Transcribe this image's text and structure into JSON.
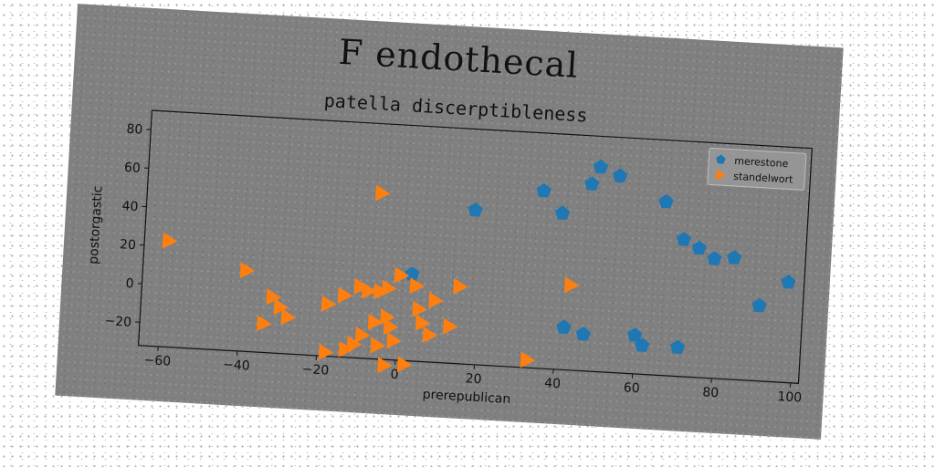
{
  "figure": {
    "suptitle": "F endothecal",
    "background": "#808080"
  },
  "chart_data": {
    "type": "scatter",
    "title": "patella discerptibleness",
    "xlabel": "prerepublican",
    "ylabel": "postorgastic",
    "xlim": [
      -65,
      102
    ],
    "ylim": [
      -32,
      90
    ],
    "xticks": [
      -60,
      -40,
      -20,
      0,
      20,
      40,
      60,
      80,
      100
    ],
    "yticks": [
      -20,
      0,
      20,
      40,
      60,
      80
    ],
    "grid": false,
    "legend_position": "upper right",
    "series": [
      {
        "name": "merestone",
        "marker": "pentagon",
        "color": "#1f77b4",
        "points": [
          [
            3,
            13
          ],
          [
            18,
            48
          ],
          [
            35,
            60
          ],
          [
            40,
            49
          ],
          [
            47,
            65
          ],
          [
            49,
            74
          ],
          [
            54,
            70
          ],
          [
            66,
            58
          ],
          [
            71,
            39
          ],
          [
            75,
            35
          ],
          [
            79,
            30
          ],
          [
            84,
            31
          ],
          [
            91,
            7
          ],
          [
            98,
            20
          ],
          [
            42,
            -10
          ],
          [
            47,
            -13
          ],
          [
            60,
            -12
          ],
          [
            62,
            -17
          ],
          [
            71,
            -17
          ]
        ]
      },
      {
        "name": "standelwort",
        "marker": "triangle-right",
        "color": "#ff7f0e",
        "points": [
          [
            -59,
            23
          ],
          [
            -39,
            10
          ],
          [
            -32,
            -3
          ],
          [
            -30,
            -8
          ],
          [
            -28,
            -13
          ],
          [
            -34,
            -17
          ],
          [
            -18,
            -5
          ],
          [
            -14,
            0
          ],
          [
            -10,
            5
          ],
          [
            -8,
            3
          ],
          [
            -5,
            3
          ],
          [
            -3,
            5
          ],
          [
            0,
            12
          ],
          [
            -3,
            -10
          ],
          [
            -2,
            -15
          ],
          [
            -6,
            -13
          ],
          [
            -9,
            -20
          ],
          [
            -11,
            -25
          ],
          [
            -13,
            -28
          ],
          [
            -18,
            -30
          ],
          [
            -5,
            -25
          ],
          [
            -1,
            -22
          ],
          [
            -3,
            -35
          ],
          [
            2,
            -34
          ],
          [
            4,
            7
          ],
          [
            5,
            -5
          ],
          [
            6,
            -12
          ],
          [
            8,
            -18
          ],
          [
            9,
            0
          ],
          [
            13,
            -13
          ],
          [
            15,
            8
          ],
          [
            33,
            -28
          ],
          [
            43,
            12
          ],
          [
            -6,
            54
          ]
        ]
      }
    ]
  }
}
